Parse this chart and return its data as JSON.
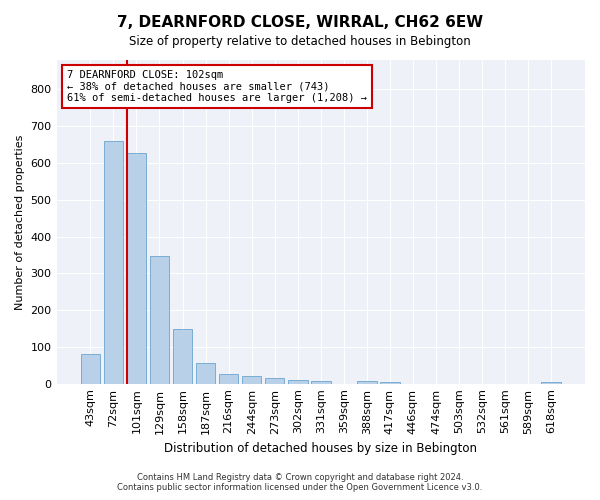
{
  "title": "7, DEARNFORD CLOSE, WIRRAL, CH62 6EW",
  "subtitle": "Size of property relative to detached houses in Bebington",
  "xlabel": "Distribution of detached houses by size in Bebington",
  "ylabel": "Number of detached properties",
  "bar_color": "#b8d0e8",
  "bar_edge_color": "#7aadd4",
  "background_color": "#eef2f8",
  "grid_color": "#ffffff",
  "categories": [
    "43sqm",
    "72sqm",
    "101sqm",
    "129sqm",
    "158sqm",
    "187sqm",
    "216sqm",
    "244sqm",
    "273sqm",
    "302sqm",
    "331sqm",
    "359sqm",
    "388sqm",
    "417sqm",
    "446sqm",
    "474sqm",
    "503sqm",
    "532sqm",
    "561sqm",
    "589sqm",
    "618sqm"
  ],
  "values": [
    82,
    660,
    628,
    347,
    148,
    57,
    25,
    20,
    15,
    11,
    7,
    0,
    7,
    5,
    0,
    0,
    0,
    0,
    0,
    0,
    5
  ],
  "ylim": [
    0,
    880
  ],
  "yticks": [
    0,
    100,
    200,
    300,
    400,
    500,
    600,
    700,
    800
  ],
  "property_label_line1": "7 DEARNFORD CLOSE: 102sqm",
  "property_label_line2": "← 38% of detached houses are smaller (743)",
  "property_label_line3": "61% of semi-detached houses are larger (1,208) →",
  "vline_color": "#cc0000",
  "annotation_box_color": "#cc0000",
  "vline_x_index": 2,
  "footer_line1": "Contains HM Land Registry data © Crown copyright and database right 2024.",
  "footer_line2": "Contains public sector information licensed under the Open Government Licence v3.0."
}
